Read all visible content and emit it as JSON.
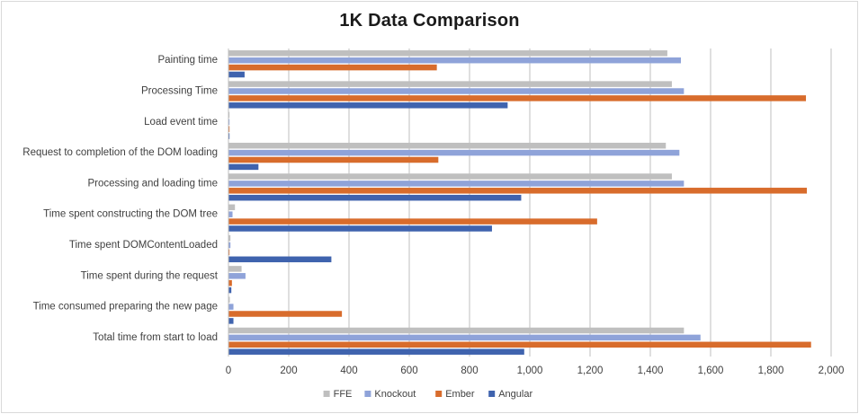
{
  "chart_data": {
    "type": "bar",
    "orientation": "horizontal",
    "title": "1K Data Comparison",
    "xlabel": "",
    "ylabel": "",
    "xlim": [
      0,
      2000
    ],
    "x_ticks": [
      0,
      200,
      400,
      600,
      800,
      1000,
      1200,
      1400,
      1600,
      1800,
      2000
    ],
    "x_tick_labels": [
      "0",
      "200",
      "400",
      "600",
      "800",
      "1,000",
      "1,200",
      "1,400",
      "1,600",
      "1,800",
      "2,000"
    ],
    "grid": "vertical major gridlines",
    "legend_position": "bottom",
    "categories": [
      "Painting time",
      "Processing Time",
      "Load event time",
      "Request to completion of the DOM loading",
      "Processing and loading time",
      "Time spent constructing the DOM tree",
      "Time spent DOMContentLoaded",
      "Time spent during the request",
      "Time consumed preparing the new page",
      "Total time from start to load"
    ],
    "series": [
      {
        "name": "FFE",
        "color": "#bfbfbf",
        "values": [
          1455,
          1470,
          2,
          1450,
          1470,
          20,
          5,
          42,
          3,
          1510
        ]
      },
      {
        "name": "Knockout",
        "color": "#8fa3d9",
        "values": [
          1500,
          1510,
          2,
          1495,
          1510,
          12,
          5,
          55,
          15,
          1565
        ]
      },
      {
        "name": "Ember",
        "color": "#d86c2c",
        "values": [
          690,
          1915,
          2,
          695,
          1918,
          1222,
          2,
          10,
          375,
          1932
        ]
      },
      {
        "name": "Angular",
        "color": "#3f63ae",
        "values": [
          52,
          925,
          2,
          98,
          970,
          873,
          340,
          8,
          15,
          980
        ]
      }
    ]
  }
}
